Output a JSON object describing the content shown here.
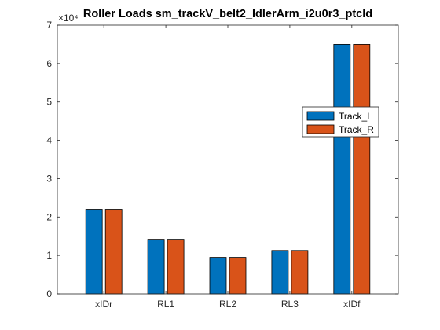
{
  "chart_data": {
    "type": "bar",
    "title": "Roller Loads sm_trackV_belt2_IdlerArm_i2u0r3_ptcld",
    "categories": [
      "xIDr",
      "RL1",
      "RL2",
      "RL3",
      "xIDf"
    ],
    "series": [
      {
        "name": "Track_L",
        "color": "#0072BD",
        "values": [
          22000,
          14200,
          9500,
          11300,
          65000
        ]
      },
      {
        "name": "Track_R",
        "color": "#D95319",
        "values": [
          22000,
          14200,
          9500,
          11300,
          65000
        ]
      }
    ],
    "ylim": [
      0,
      70000
    ],
    "yticks": [
      "0",
      "1",
      "2",
      "3",
      "4",
      "5",
      "6",
      "7"
    ],
    "y_exponent_label": "×10⁴",
    "xlabel": "",
    "ylabel": "",
    "legend_position": "right-middle",
    "grid": false
  }
}
